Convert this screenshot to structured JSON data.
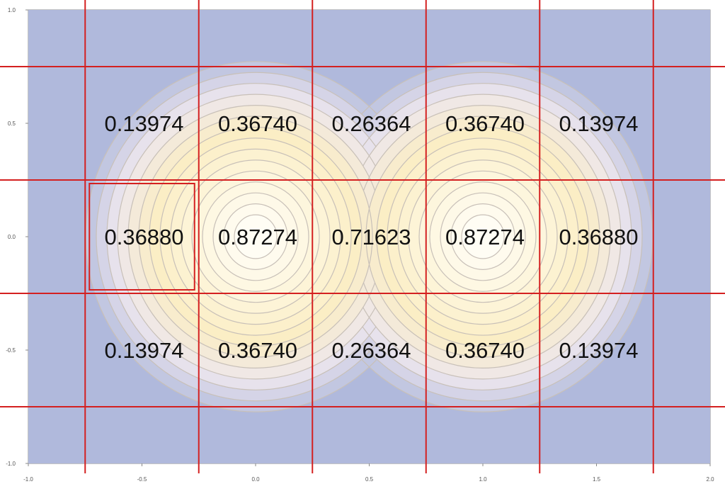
{
  "chart_data": {
    "type": "heatmap",
    "title": "",
    "xlabel": "",
    "ylabel": "",
    "xlim": [
      -1.0,
      2.0
    ],
    "ylim": [
      -1.0,
      1.0
    ],
    "x_ticks": [
      "-1.0",
      "-0.5",
      "0.0",
      "0.5",
      "1.0",
      "1.5",
      "2.0"
    ],
    "y_ticks": [
      "1.0",
      "0.5",
      "0.0",
      "-0.5",
      "-1.0"
    ],
    "x_tick_values": [
      -1.0,
      -0.5,
      0.0,
      0.5,
      1.0,
      1.5,
      2.0
    ],
    "y_tick_values": [
      1.0,
      0.5,
      0.0,
      -0.5,
      -1.0
    ],
    "grid_x": [
      -0.75,
      -0.25,
      0.25,
      0.75,
      1.25,
      1.75
    ],
    "grid_y": [
      0.75,
      0.25,
      -0.25,
      -0.75
    ],
    "cell_centers_x": [
      -0.5,
      0.0,
      0.5,
      1.0,
      1.5
    ],
    "cell_centers_y": [
      0.5,
      0.0,
      -0.5
    ],
    "cells": [
      [
        "0.13974",
        "0.36740",
        "0.26364",
        "0.36740",
        "0.13974"
      ],
      [
        "0.36880",
        "0.87274",
        "0.71623",
        "0.87274",
        "0.36880"
      ],
      [
        "0.13974",
        "0.36740",
        "0.26364",
        "0.36740",
        "0.13974"
      ]
    ],
    "highlight_cell": {
      "row": 1,
      "col": 1
    },
    "contour_sources": [
      {
        "x": 0.0,
        "y": 0.0
      },
      {
        "x": 1.0,
        "y": 0.0
      }
    ],
    "grid": true,
    "colors": {
      "low": "#b0b9dc",
      "mid": "#ede6ee",
      "warm": "#fbeec4",
      "high": "#fffdf4",
      "grid_line": "#d42020",
      "contour_line": "#c8c0b8"
    }
  }
}
